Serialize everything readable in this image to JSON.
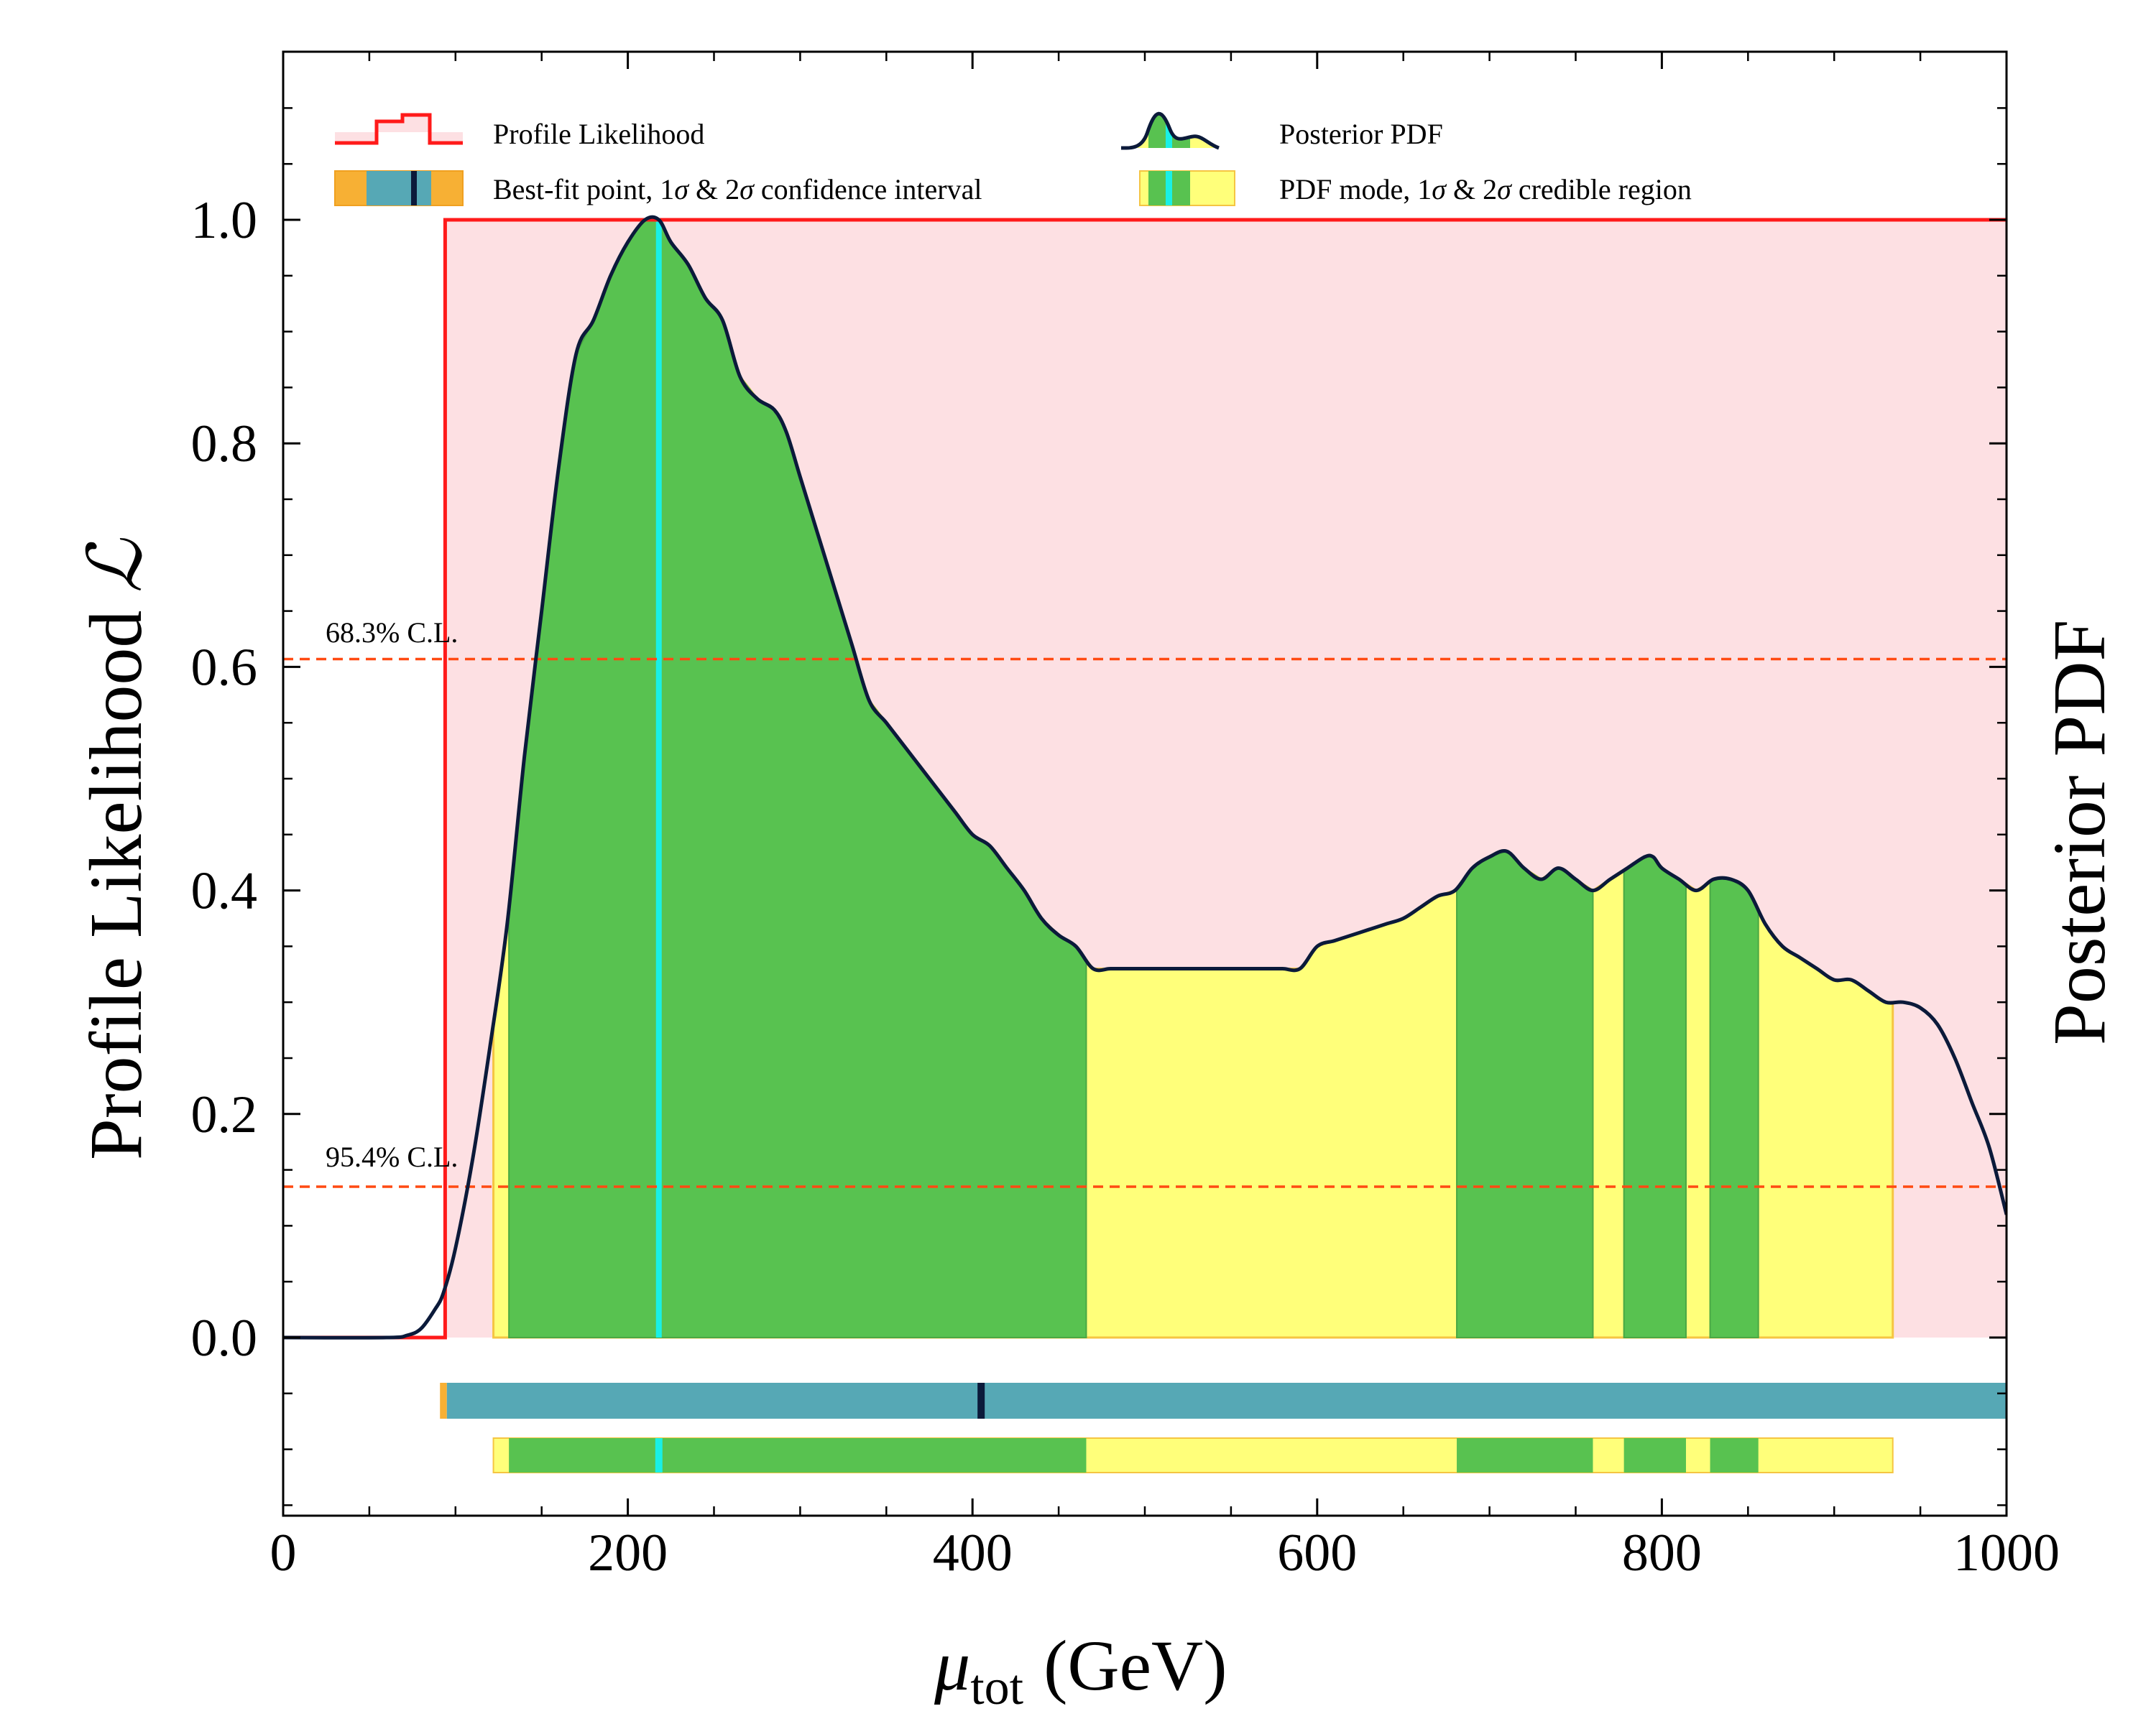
{
  "chart_data": {
    "type": "area",
    "xlabel_symbol": "μ",
    "xlabel_sub": "tot",
    "xlabel_unit": "(GeV)",
    "ylabel_left": "Profile Likelihood",
    "ylabel_left_symbol": "ℒ",
    "ylabel_right": "Posterior PDF",
    "xlim": [
      0,
      1000
    ],
    "ylim": [
      -0.16,
      1.15
    ],
    "x_ticks": [
      0,
      200,
      400,
      600,
      800,
      1000
    ],
    "x_tick_labels": [
      "0",
      "200",
      "400",
      "600",
      "800",
      "1000"
    ],
    "y_ticks": [
      0.0,
      0.2,
      0.4,
      0.6,
      0.8,
      1.0
    ],
    "y_tick_labels": [
      "0.0",
      "0.2",
      "0.4",
      "0.6",
      "0.8",
      "1.0"
    ],
    "colors": {
      "profile_line": "#ff1a1a",
      "profile_fill": "#fde0e3",
      "pdf_line": "#0b1a3a",
      "cred_1sigma": "#58c250",
      "cred_2sigma": "#ffff7a",
      "cred_edge": "#f5c542",
      "conf_1sigma": "#56a8b5",
      "conf_2sigma": "#f7b034",
      "pdf_mode": "#19f0e6",
      "best_fit": "#0b1a3a",
      "cl_line": "#ff4a12"
    },
    "profile_likelihood": {
      "name": "Profile Likelihood",
      "x": [
        0,
        94,
        94,
        94.3,
        100,
        1000
      ],
      "y": [
        0.0,
        0.0,
        1.0,
        1.0,
        1.0,
        1.0
      ]
    },
    "posterior_pdf": {
      "name": "Posterior PDF",
      "x": [
        0,
        60,
        72,
        80,
        88,
        93,
        100,
        110,
        120,
        130,
        140,
        150,
        160,
        170,
        180,
        190,
        200,
        210,
        218,
        225,
        235,
        245,
        255,
        265,
        275,
        285,
        292,
        300,
        310,
        320,
        330,
        340,
        350,
        360,
        370,
        380,
        390,
        400,
        410,
        420,
        430,
        440,
        450,
        460,
        470,
        480,
        490,
        500,
        510,
        520,
        525,
        530,
        540,
        550,
        560,
        570,
        580,
        590,
        600,
        610,
        620,
        630,
        640,
        650,
        660,
        670,
        680,
        690,
        700,
        710,
        720,
        730,
        740,
        750,
        760,
        770,
        780,
        790,
        795,
        800,
        810,
        820,
        830,
        840,
        850,
        860,
        870,
        880,
        890,
        900,
        910,
        920,
        930,
        940,
        950,
        960,
        970,
        980,
        990,
        1000
      ],
      "y": [
        0.0,
        0.0,
        0.002,
        0.008,
        0.025,
        0.04,
        0.08,
        0.16,
        0.26,
        0.37,
        0.52,
        0.65,
        0.78,
        0.88,
        0.91,
        0.95,
        0.98,
        1.0,
        1.0,
        0.98,
        0.96,
        0.93,
        0.91,
        0.86,
        0.84,
        0.83,
        0.81,
        0.77,
        0.72,
        0.67,
        0.62,
        0.57,
        0.55,
        0.53,
        0.51,
        0.49,
        0.47,
        0.45,
        0.44,
        0.42,
        0.4,
        0.375,
        0.36,
        0.35,
        0.33,
        0.33,
        0.33,
        0.33,
        0.33,
        0.33,
        0.33,
        0.33,
        0.33,
        0.33,
        0.33,
        0.33,
        0.33,
        0.33,
        0.35,
        0.355,
        0.36,
        0.365,
        0.37,
        0.375,
        0.385,
        0.395,
        0.4,
        0.42,
        0.43,
        0.435,
        0.42,
        0.41,
        0.42,
        0.41,
        0.4,
        0.41,
        0.42,
        0.43,
        0.43,
        0.42,
        0.41,
        0.4,
        0.41,
        0.41,
        0.4,
        0.37,
        0.35,
        0.34,
        0.33,
        0.32,
        0.32,
        0.31,
        0.3,
        0.3,
        0.295,
        0.28,
        0.25,
        0.21,
        0.17,
        0.11
      ]
    },
    "credible_1sigma": [
      [
        131,
        466
      ],
      [
        681,
        760
      ],
      [
        778,
        814
      ],
      [
        828,
        856
      ]
    ],
    "credible_2sigma": [
      [
        122,
        934
      ]
    ],
    "confidence_1sigma": [
      [
        95,
        1000
      ]
    ],
    "confidence_2sigma": [
      [
        91,
        95
      ]
    ],
    "best_fit_point": 405,
    "pdf_mode": 218,
    "cl_lines": [
      {
        "label": "68.3% C.L.",
        "y": 0.607
      },
      {
        "label": "95.4% C.L.",
        "y": 0.135
      }
    ],
    "legend": {
      "profile": "Profile Likelihood",
      "pdf": "Posterior PDF",
      "best_fit_prefix": "Best-fit point, 1",
      "best_fit_mid": " & 2",
      "best_fit_suffix": " confidence interval",
      "mode_prefix": "PDF mode, 1",
      "mode_mid": " & 2",
      "mode_suffix": " credible region",
      "sigma": "σ",
      "placement": "top"
    }
  }
}
